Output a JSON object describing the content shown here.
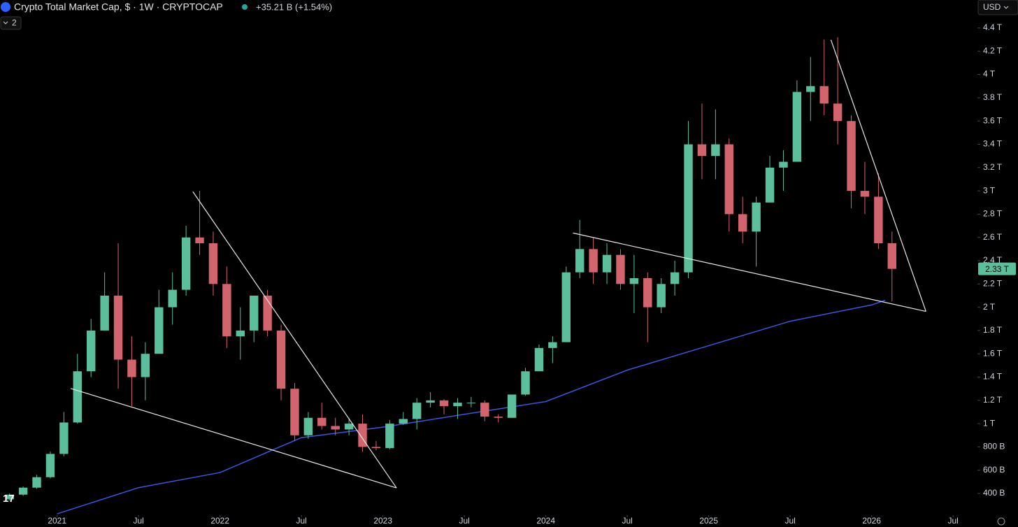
{
  "chart_data": {
    "type": "candlestick",
    "title": "Crypto Total Market Cap, $ · 1W · CRYPTOCAP",
    "change": "+35.21 B (+1.54%)",
    "indicator_count": 2,
    "currency": "USD",
    "up_color": "#5bbf9c",
    "down_color": "#d2646d",
    "x": [
      "2020-09",
      "2020-10",
      "2020-11",
      "2020-12",
      "2021-01",
      "2021-02",
      "2021-03",
      "2021-04",
      "2021-05",
      "2021-06",
      "2021-07",
      "2021-08",
      "2021-09",
      "2021-10",
      "2021-11",
      "2021-12",
      "2022-01",
      "2022-02",
      "2022-03",
      "2022-04",
      "2022-05",
      "2022-06",
      "2022-07",
      "2022-08",
      "2022-09",
      "2022-10",
      "2022-11",
      "2022-12",
      "2023-01",
      "2023-02",
      "2023-03",
      "2023-04",
      "2023-05",
      "2023-06",
      "2023-07",
      "2023-08",
      "2023-09",
      "2023-10",
      "2023-11",
      "2023-12",
      "2024-01",
      "2024-02",
      "2024-03",
      "2024-04",
      "2024-05",
      "2024-06",
      "2024-07",
      "2024-08",
      "2024-09",
      "2024-10",
      "2024-11",
      "2024-12",
      "2025-01",
      "2025-02",
      "2025-03",
      "2025-04",
      "2025-05",
      "2025-06",
      "2025-07",
      "2025-08",
      "2025-09",
      "2025-10",
      "2025-11",
      "2025-12",
      "2026-01",
      "2026-02"
    ],
    "open": [
      350,
      390,
      450,
      540,
      740,
      1010,
      1450,
      1800,
      2100,
      1550,
      1400,
      1600,
      2000,
      2150,
      2600,
      2550,
      2200,
      1750,
      1800,
      2100,
      1800,
      1300,
      900,
      1050,
      980,
      950,
      1000,
      800,
      790,
      1000,
      1040,
      1180,
      1200,
      1150,
      1180,
      1180,
      1060,
      1050,
      1250,
      1450,
      1650,
      1700,
      2300,
      2500,
      2300,
      2450,
      2200,
      2250,
      2000,
      2200,
      2300,
      3400,
      3300,
      3400,
      2800,
      2650,
      2900,
      3200,
      3250,
      3850,
      3900,
      3750,
      3600,
      3000,
      2950,
      2550
    ],
    "high": [
      400,
      460,
      560,
      760,
      1100,
      1600,
      1900,
      2300,
      2550,
      1750,
      1700,
      2150,
      2300,
      2700,
      3000,
      2650,
      2350,
      2000,
      2100,
      2150,
      1850,
      1350,
      1100,
      1180,
      1050,
      1050,
      1080,
      850,
      1030,
      1100,
      1220,
      1270,
      1210,
      1220,
      1230,
      1200,
      1080,
      1250,
      1480,
      1680,
      1750,
      2350,
      2750,
      2600,
      2550,
      2500,
      2450,
      2300,
      2250,
      2400,
      3600,
      3750,
      3700,
      3450,
      2950,
      2950,
      3300,
      3350,
      3950,
      4150,
      4300,
      4320,
      3650,
      3250,
      3150,
      2650
    ],
    "low": [
      340,
      380,
      440,
      530,
      720,
      1000,
      1400,
      1800,
      1300,
      1150,
      1200,
      1600,
      1850,
      2100,
      2450,
      2100,
      1650,
      1550,
      1700,
      1750,
      1200,
      850,
      870,
      950,
      900,
      900,
      760,
      770,
      780,
      990,
      950,
      1140,
      1080,
      1040,
      1140,
      1020,
      1010,
      1050,
      1240,
      1450,
      1520,
      1700,
      2250,
      2200,
      2200,
      2150,
      1950,
      1700,
      1950,
      2100,
      2250,
      3100,
      3100,
      2650,
      2550,
      2350,
      2900,
      3000,
      3250,
      3600,
      3650,
      3400,
      2850,
      2800,
      2500,
      2050
    ],
    "close": [
      390,
      450,
      540,
      740,
      1010,
      1450,
      1800,
      2100,
      1550,
      1400,
      1600,
      2000,
      2150,
      2600,
      2550,
      2200,
      1750,
      1800,
      2100,
      1800,
      1300,
      900,
      1050,
      980,
      950,
      1000,
      800,
      790,
      1000,
      1040,
      1180,
      1200,
      1150,
      1180,
      1180,
      1060,
      1050,
      1250,
      1450,
      1650,
      1700,
      2300,
      2500,
      2300,
      2450,
      2200,
      2250,
      2000,
      2200,
      2300,
      3400,
      3300,
      3400,
      2800,
      2650,
      2900,
      3200,
      3250,
      3850,
      3900,
      3750,
      3600,
      3000,
      2950,
      2550,
      2330
    ],
    "last_price": {
      "value": 2330,
      "label": "2.33 T"
    },
    "moving_average": {
      "color": "#3d55e0",
      "x": [
        "2021-01",
        "2021-07",
        "2022-01",
        "2022-07",
        "2023-01",
        "2023-07",
        "2024-01",
        "2024-07",
        "2025-01",
        "2025-07",
        "2026-01",
        "2026-02"
      ],
      "values": [
        225,
        450,
        580,
        880,
        970,
        1080,
        1190,
        1460,
        1670,
        1880,
        2020,
        2060
      ]
    },
    "trendlines": [
      {
        "x": [
          "2021-02",
          "2023-02"
        ],
        "values": [
          1302,
          448
        ]
      },
      {
        "x": [
          "2021-11",
          "2023-02"
        ],
        "values": [
          2993,
          448
        ]
      },
      {
        "x": [
          "2024-03",
          "2026-05"
        ],
        "values": [
          2638,
          1964
        ]
      },
      {
        "x": [
          "2025-10",
          "2026-05"
        ],
        "values": [
          4298,
          1964
        ]
      }
    ],
    "trendline_color": "#e8e8e8",
    "xlim": [
      "2020-09",
      "2026-09"
    ],
    "ylim": [
      214,
      4640
    ],
    "xticks": [
      {
        "value": "2021-01",
        "label": "2021"
      },
      {
        "value": "2021-07",
        "label": "Jul"
      },
      {
        "value": "2022-01",
        "label": "2022"
      },
      {
        "value": "2022-07",
        "label": "Jul"
      },
      {
        "value": "2023-01",
        "label": "2023"
      },
      {
        "value": "2023-07",
        "label": "Jul"
      },
      {
        "value": "2024-01",
        "label": "2024"
      },
      {
        "value": "2024-07",
        "label": "Jul"
      },
      {
        "value": "2025-01",
        "label": "2025"
      },
      {
        "value": "2025-07",
        "label": "Jul"
      },
      {
        "value": "2026-01",
        "label": "2026"
      },
      {
        "value": "2026-07",
        "label": "Jul"
      }
    ],
    "yticks": [
      {
        "value": 400,
        "label": "400 B"
      },
      {
        "value": 600,
        "label": "600 B"
      },
      {
        "value": 800,
        "label": "800 B"
      },
      {
        "value": 1000,
        "label": "1 T"
      },
      {
        "value": 1200,
        "label": "1.2 T"
      },
      {
        "value": 1400,
        "label": "1.4 T"
      },
      {
        "value": 1600,
        "label": "1.6 T"
      },
      {
        "value": 1800,
        "label": "1.8 T"
      },
      {
        "value": 2000,
        "label": "2 T"
      },
      {
        "value": 2200,
        "label": "2.2 T"
      },
      {
        "value": 2400,
        "label": "2.4 T"
      },
      {
        "value": 2600,
        "label": "2.6 T"
      },
      {
        "value": 2800,
        "label": "2.8 T"
      },
      {
        "value": 3000,
        "label": "3 T"
      },
      {
        "value": 3200,
        "label": "3.2 T"
      },
      {
        "value": 3400,
        "label": "3.4 T"
      },
      {
        "value": 3600,
        "label": "3.6 T"
      },
      {
        "value": 3800,
        "label": "3.8 T"
      },
      {
        "value": 4000,
        "label": "4 T"
      },
      {
        "value": 4200,
        "label": "4.2 T"
      },
      {
        "value": 4400,
        "label": "4.4 T"
      }
    ],
    "grid": false
  }
}
